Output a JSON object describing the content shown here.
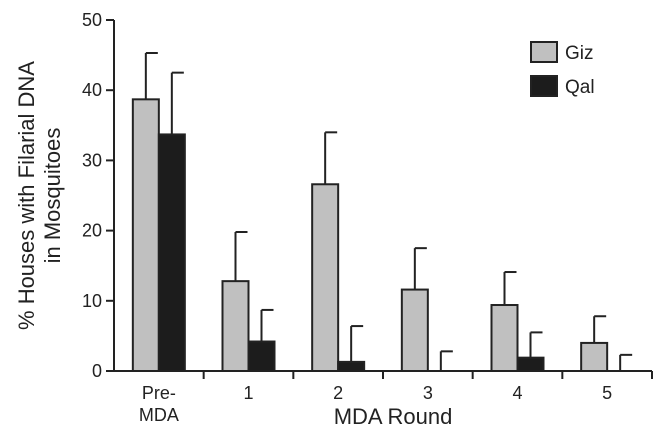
{
  "chart_data": {
    "type": "bar",
    "categories": [
      [
        "Pre-",
        "MDA"
      ],
      [
        "1"
      ],
      [
        "2"
      ],
      [
        "3"
      ],
      [
        "4"
      ],
      [
        "5"
      ]
    ],
    "series": [
      {
        "name": "Giz",
        "values": [
          38.7,
          12.8,
          26.6,
          11.6,
          9.4,
          4.0
        ],
        "error": [
          6.6,
          7.0,
          7.4,
          5.9,
          4.7,
          3.8
        ]
      },
      {
        "name": "Qal",
        "values": [
          33.7,
          4.2,
          1.3,
          0.0,
          1.9,
          0.0
        ],
        "error": [
          8.8,
          4.5,
          5.1,
          2.8,
          3.6,
          2.3
        ]
      }
    ],
    "xlabel": "MDA Round",
    "ylabel": [
      "% Houses with Filarial DNA",
      "in Mosquitoes"
    ],
    "ylim": [
      0,
      50
    ],
    "yticks": [
      0,
      10,
      20,
      30,
      40,
      50
    ],
    "legend_position": "top-right",
    "colors": {
      "Giz": "#c0c0c0",
      "Qal": "#1c1c1c",
      "axis": "#222222"
    }
  }
}
